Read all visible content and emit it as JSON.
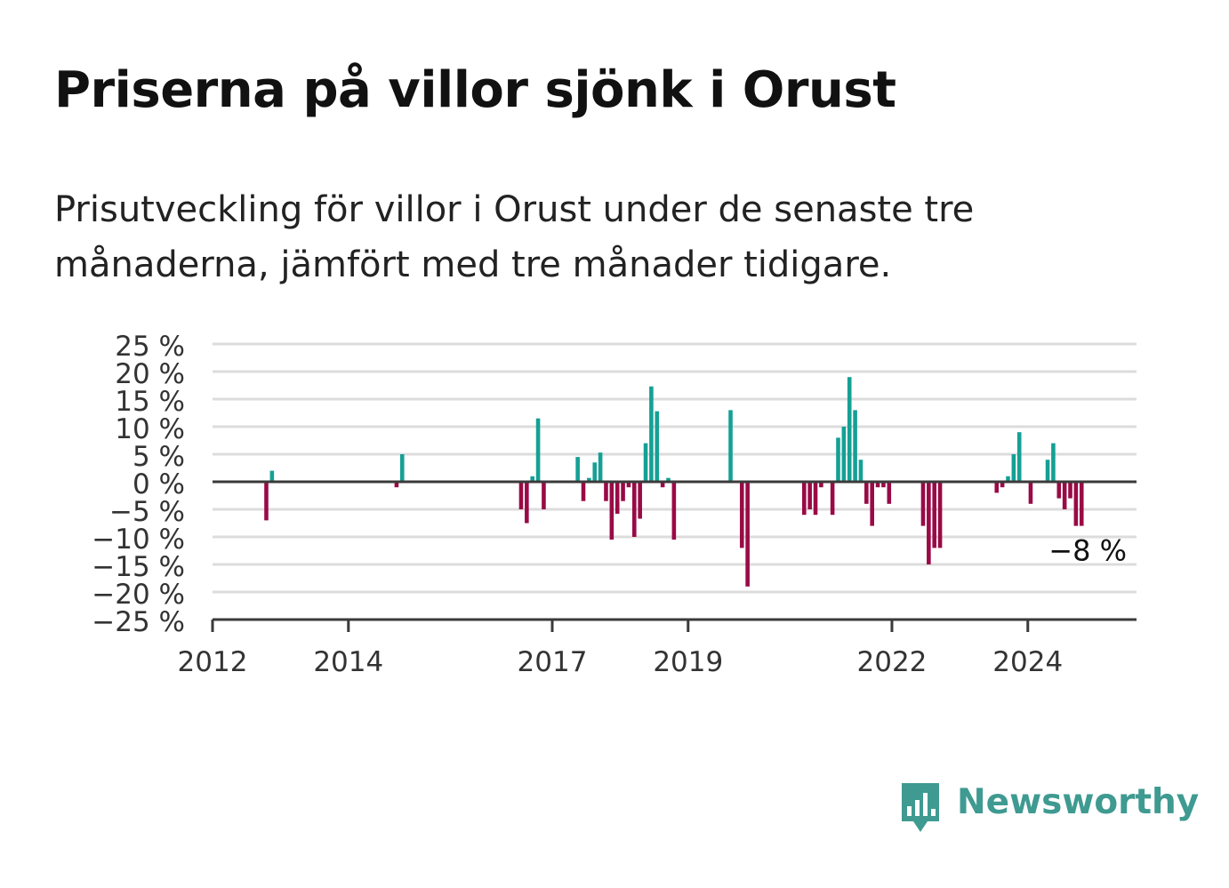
{
  "title": "Priserna på villor sjönk i Orust",
  "subtitle": "Prisutveckling för villor i Orust under de senaste tre månaderna, jämfört med tre månader tidigare.",
  "brand": {
    "name": "Newsworthy",
    "color": "#3f9a91"
  },
  "colors": {
    "positive": "#15a095",
    "negative": "#990a46"
  },
  "chart_data": {
    "type": "bar",
    "ylim": [
      -25,
      25
    ],
    "y_ticks": [
      25,
      20,
      15,
      10,
      5,
      0,
      -5,
      -10,
      -15,
      -20,
      -25
    ],
    "y_tick_labels": [
      "25 %",
      "20 %",
      "15 %",
      "10 %",
      "5 %",
      "0 %",
      "−5 %",
      "−10 %",
      "−15 %",
      "−20 %",
      "−25 %"
    ],
    "x_tick_labels": [
      "2012",
      "2014",
      "2017",
      "2019",
      "2022",
      "2024"
    ],
    "grid": true,
    "last_value_label": "−8 %",
    "series": [
      {
        "values": [
          {
            "date": "2012-10",
            "value": -7.0
          },
          {
            "date": "2012-11",
            "value": 2.0
          },
          {
            "date": "2014-09",
            "value": -1.0
          },
          {
            "date": "2014-10",
            "value": 5.0
          },
          {
            "date": "2016-07",
            "value": -5.0
          },
          {
            "date": "2016-08",
            "value": -7.5
          },
          {
            "date": "2016-09",
            "value": 1.0
          },
          {
            "date": "2016-10",
            "value": 11.5
          },
          {
            "date": "2016-11",
            "value": -5.0
          },
          {
            "date": "2017-05",
            "value": 4.5
          },
          {
            "date": "2017-06",
            "value": -3.5
          },
          {
            "date": "2017-07",
            "value": 0.7
          },
          {
            "date": "2017-08",
            "value": 3.5
          },
          {
            "date": "2017-09",
            "value": 5.3
          },
          {
            "date": "2017-10",
            "value": -3.5
          },
          {
            "date": "2017-11",
            "value": -10.5
          },
          {
            "date": "2017-12",
            "value": -5.8
          },
          {
            "date": "2018-01",
            "value": -3.5
          },
          {
            "date": "2018-02",
            "value": -1.0
          },
          {
            "date": "2018-03",
            "value": -10.0
          },
          {
            "date": "2018-04",
            "value": -6.7
          },
          {
            "date": "2018-05",
            "value": 7.0
          },
          {
            "date": "2018-06",
            "value": 17.3
          },
          {
            "date": "2018-07",
            "value": 12.8
          },
          {
            "date": "2018-08",
            "value": -1.0
          },
          {
            "date": "2018-09",
            "value": 0.7
          },
          {
            "date": "2018-10",
            "value": -10.5
          },
          {
            "date": "2019-08",
            "value": 13.0
          },
          {
            "date": "2019-10",
            "value": -12.0
          },
          {
            "date": "2019-11",
            "value": -19.0
          },
          {
            "date": "2020-09",
            "value": -6.0
          },
          {
            "date": "2020-10",
            "value": -5.0
          },
          {
            "date": "2020-11",
            "value": -6.0
          },
          {
            "date": "2020-12",
            "value": -1.0
          },
          {
            "date": "2021-02",
            "value": -6.0
          },
          {
            "date": "2021-03",
            "value": 8.0
          },
          {
            "date": "2021-04",
            "value": 10.0
          },
          {
            "date": "2021-05",
            "value": 19.0
          },
          {
            "date": "2021-06",
            "value": 13.0
          },
          {
            "date": "2021-07",
            "value": 4.0
          },
          {
            "date": "2021-08",
            "value": -4.0
          },
          {
            "date": "2021-09",
            "value": -8.0
          },
          {
            "date": "2021-10",
            "value": -1.0
          },
          {
            "date": "2021-11",
            "value": -1.0
          },
          {
            "date": "2021-12",
            "value": -4.0
          },
          {
            "date": "2022-06",
            "value": -8.0
          },
          {
            "date": "2022-07",
            "value": -15.0
          },
          {
            "date": "2022-08",
            "value": -12.0
          },
          {
            "date": "2022-09",
            "value": -12.0
          },
          {
            "date": "2023-07",
            "value": -2.0
          },
          {
            "date": "2023-08",
            "value": -1.0
          },
          {
            "date": "2023-09",
            "value": 1.0
          },
          {
            "date": "2023-10",
            "value": 5.0
          },
          {
            "date": "2023-11",
            "value": 9.0
          },
          {
            "date": "2024-01",
            "value": -4.0
          },
          {
            "date": "2024-04",
            "value": 4.0
          },
          {
            "date": "2024-05",
            "value": 7.0
          },
          {
            "date": "2024-06",
            "value": -3.0
          },
          {
            "date": "2024-07",
            "value": -5.0
          },
          {
            "date": "2024-08",
            "value": -3.0
          },
          {
            "date": "2024-09",
            "value": -8.0
          },
          {
            "date": "2024-10",
            "value": -8.0
          }
        ]
      }
    ]
  }
}
